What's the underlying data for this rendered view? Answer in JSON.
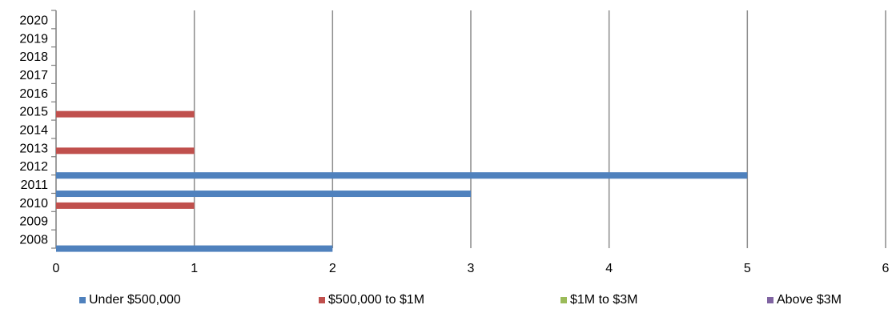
{
  "chart_data": {
    "type": "bar",
    "orientation": "horizontal",
    "categories": [
      "2008",
      "2009",
      "2010",
      "2011",
      "2012",
      "2013",
      "2014",
      "2015",
      "2016",
      "2017",
      "2018",
      "2019",
      "2020"
    ],
    "series": [
      {
        "name": "Under $500,000",
        "color": "#4F81BD",
        "values": [
          2,
          0,
          0,
          3,
          5,
          0,
          0,
          0,
          0,
          0,
          0,
          0,
          0
        ]
      },
      {
        "name": "$500,000 to $1M",
        "color": "#C0504D",
        "values": [
          0,
          0,
          1,
          0,
          0,
          1,
          0,
          1,
          0,
          0,
          0,
          0,
          0
        ]
      },
      {
        "name": "$1M to $3M",
        "color": "#9BBB59",
        "values": [
          0,
          0,
          0,
          0,
          0,
          0,
          0,
          0,
          0,
          0,
          0,
          0,
          0
        ]
      },
      {
        "name": "Above $3M",
        "color": "#8064A2",
        "values": [
          0,
          0,
          0,
          0,
          0,
          0,
          0,
          0,
          0,
          0,
          0,
          0,
          0
        ]
      }
    ],
    "xticks": [
      "0",
      "1",
      "2",
      "3",
      "4",
      "5",
      "6"
    ],
    "xlim": [
      0,
      6
    ],
    "grid": "vertical",
    "legend": "bottom",
    "legend_labels": [
      "Under $500,000",
      "$500,000 to $1M",
      "$1M to $3M",
      "Above $3M"
    ]
  }
}
